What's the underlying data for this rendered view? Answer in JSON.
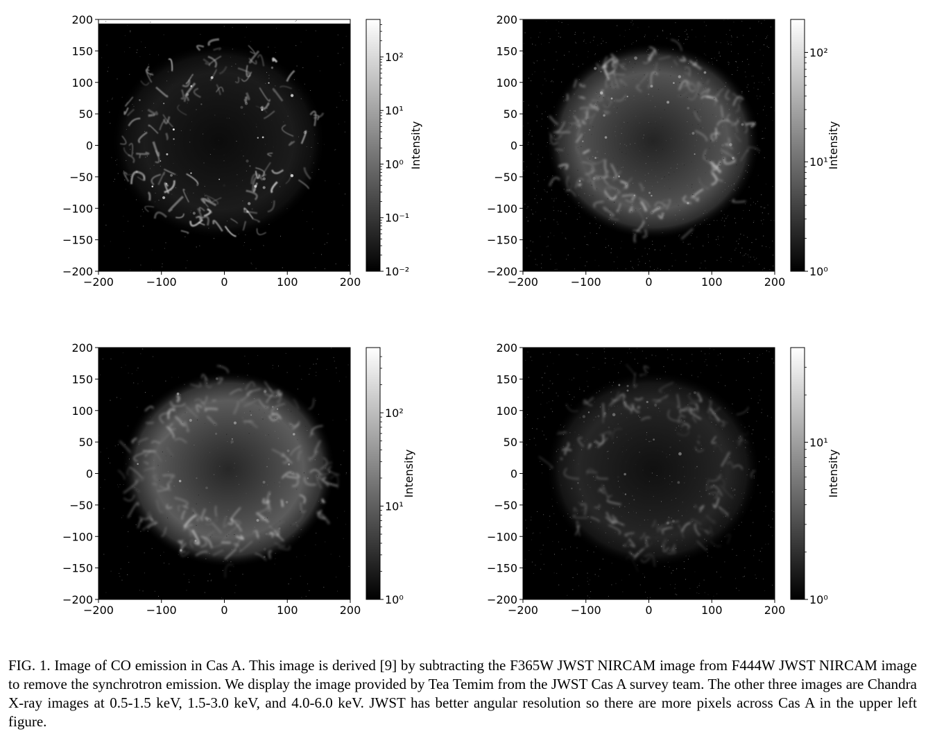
{
  "figure": {
    "caption": "FIG. 1.  Image of CO emission in Cas A. This image is derived [9] by subtracting the F365W JWST NIRCAM image from F444W JWST NIRCAM image to remove the synchrotron emission. We display the image provided by Tea Temim from the JWST Cas A survey team. The other three images are Chandra X-ray images at 0.5-1.5 keV, 1.5-3.0 keV, and 4.0-6.0 keV. JWST has better angular resolution so there are more pixels across Cas A in the upper left figure."
  },
  "chart_data": [
    {
      "type": "heatmap",
      "panel": "top-left",
      "x_ticks": [
        "−200",
        "−100",
        "0",
        "100",
        "200"
      ],
      "y_ticks": [
        "200",
        "150",
        "100",
        "50",
        "0",
        "−50",
        "−100",
        "−150",
        "−200"
      ],
      "xlim": [
        -200,
        200
      ],
      "ylim": [
        -200,
        200
      ],
      "colorbar": {
        "label": "Intensity",
        "scale": "log",
        "range": [
          0.01,
          500
        ],
        "ticks": [
          {
            "value": 100,
            "label": "10²"
          },
          {
            "value": 10,
            "label": "10¹"
          },
          {
            "value": 1,
            "label": "10⁰"
          },
          {
            "value": 0.1,
            "label": "10⁻¹"
          },
          {
            "value": 0.01,
            "label": "10⁻²"
          }
        ]
      },
      "colormap": "gray"
    },
    {
      "type": "heatmap",
      "panel": "top-right",
      "x_ticks": [
        "−200",
        "−100",
        "0",
        "100",
        "200"
      ],
      "y_ticks": [
        "200",
        "150",
        "100",
        "50",
        "0",
        "−50",
        "−100",
        "−150",
        "−200"
      ],
      "xlim": [
        -200,
        200
      ],
      "ylim": [
        -200,
        200
      ],
      "colorbar": {
        "label": "Intensity",
        "scale": "log",
        "range": [
          1,
          200
        ],
        "ticks": [
          {
            "value": 100,
            "label": "10²"
          },
          {
            "value": 10,
            "label": "10¹"
          },
          {
            "value": 1,
            "label": "10⁰"
          }
        ]
      },
      "colormap": "gray"
    },
    {
      "type": "heatmap",
      "panel": "bottom-left",
      "x_ticks": [
        "−200",
        "−100",
        "0",
        "100",
        "200"
      ],
      "y_ticks": [
        "200",
        "150",
        "100",
        "50",
        "0",
        "−50",
        "−100",
        "−150",
        "−200"
      ],
      "xlim": [
        -200,
        200
      ],
      "ylim": [
        -200,
        200
      ],
      "colorbar": {
        "label": "Intensity",
        "scale": "log",
        "range": [
          1,
          500
        ],
        "ticks": [
          {
            "value": 100,
            "label": "10²"
          },
          {
            "value": 10,
            "label": "10¹"
          },
          {
            "value": 1,
            "label": "10⁰"
          }
        ]
      },
      "colormap": "gray"
    },
    {
      "type": "heatmap",
      "panel": "bottom-right",
      "x_ticks": [
        "−200",
        "−100",
        "0",
        "100",
        "200"
      ],
      "y_ticks": [
        "200",
        "150",
        "100",
        "50",
        "0",
        "−50",
        "−100",
        "−150",
        "−200"
      ],
      "xlim": [
        -200,
        200
      ],
      "ylim": [
        -200,
        200
      ],
      "colorbar": {
        "label": "Intensity",
        "scale": "log",
        "range": [
          1,
          40
        ],
        "ticks": [
          {
            "value": 10,
            "label": "10¹"
          },
          {
            "value": 1,
            "label": "10⁰"
          }
        ]
      },
      "colormap": "gray"
    }
  ]
}
